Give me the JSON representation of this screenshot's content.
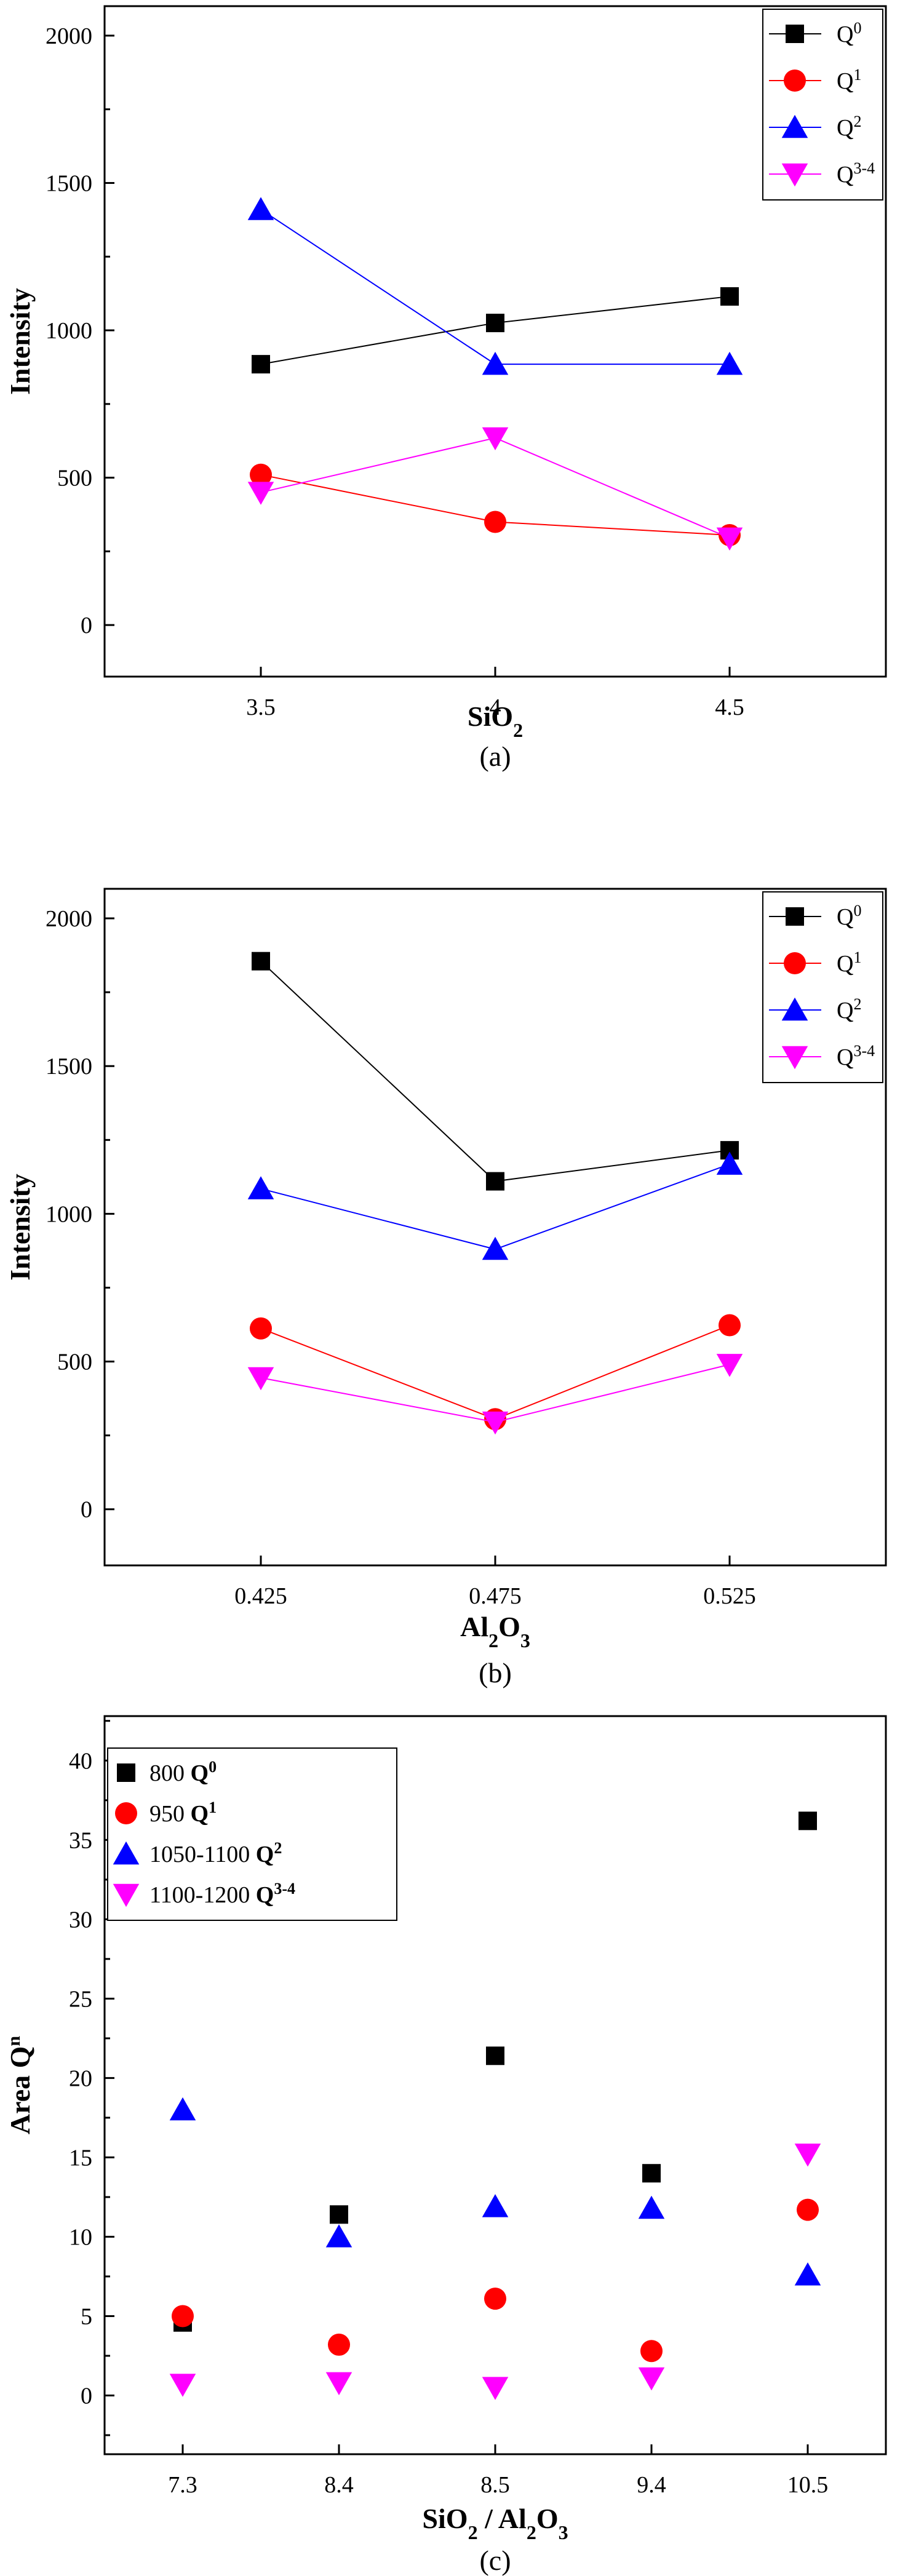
{
  "chart_data": [
    {
      "type": "line",
      "panel_label": "(a)",
      "x": [
        "3.5",
        "4",
        "4.5"
      ],
      "series": [
        {
          "name": "Q0",
          "label_base": "Q",
          "label_sup": "0",
          "color": "#000000",
          "marker": "square",
          "values": [
            885,
            1025,
            1115
          ]
        },
        {
          "name": "Q1",
          "label_base": "Q",
          "label_sup": "1",
          "color": "#ff0000",
          "marker": "circle",
          "values": [
            510,
            350,
            305
          ]
        },
        {
          "name": "Q2",
          "label_base": "Q",
          "label_sup": "2",
          "color": "#0000ff",
          "marker": "triangle-up",
          "values": [
            1410,
            885,
            885
          ]
        },
        {
          "name": "Q3-4",
          "label_base": "Q",
          "label_sup": "3-4",
          "color": "#ff00ff",
          "marker": "triangle-down",
          "values": [
            450,
            635,
            295
          ]
        }
      ],
      "ylabel": "Intensity",
      "xlabel_parts": [
        {
          "t": "SiO",
          "sub": false
        },
        {
          "t": "2",
          "sub": true
        }
      ],
      "ylim": [
        -175,
        2100
      ],
      "yticks": [
        0,
        500,
        1000,
        1500,
        2000
      ],
      "legend": "top-right",
      "grid": false
    },
    {
      "type": "line",
      "panel_label": "(b)",
      "x": [
        "0.425",
        "0.475",
        "0.525"
      ],
      "series": [
        {
          "name": "Q0",
          "label_base": "Q",
          "label_sup": "0",
          "color": "#000000",
          "marker": "square",
          "values": [
            1855,
            1110,
            1215
          ]
        },
        {
          "name": "Q1",
          "label_base": "Q",
          "label_sup": "1",
          "color": "#ff0000",
          "marker": "circle",
          "values": [
            612,
            305,
            623
          ]
        },
        {
          "name": "Q2",
          "label_base": "Q",
          "label_sup": "2",
          "color": "#0000ff",
          "marker": "triangle-up",
          "values": [
            1085,
            880,
            1168
          ]
        },
        {
          "name": "Q3-4",
          "label_base": "Q",
          "label_sup": "3-4",
          "color": "#ff00ff",
          "marker": "triangle-down",
          "values": [
            445,
            295,
            490
          ]
        }
      ],
      "ylabel": "Intensity",
      "xlabel_parts": [
        {
          "t": "Al",
          "sub": false
        },
        {
          "t": "2",
          "sub": true
        },
        {
          "t": "O",
          "sub": false
        },
        {
          "t": "3",
          "sub": true
        }
      ],
      "ylim": [
        -190,
        2100
      ],
      "yticks": [
        0,
        500,
        1000,
        1500,
        2000
      ],
      "legend": "top-right",
      "grid": false
    },
    {
      "type": "scatter",
      "panel_label": "(c)",
      "x": [
        "7.3",
        "8.4",
        "8.5",
        "9.4",
        "10.5"
      ],
      "series": [
        {
          "name": "800 Q0",
          "label_prefix": "800 ",
          "label_base": "Q",
          "label_sup": "0",
          "color": "#000000",
          "marker": "square",
          "values": [
            4.6,
            11.4,
            21.4,
            14.0,
            36.2
          ]
        },
        {
          "name": "950 Q1",
          "label_prefix": "950 ",
          "label_base": "Q",
          "label_sup": "1",
          "color": "#ff0000",
          "marker": "circle",
          "values": [
            5.0,
            3.2,
            6.1,
            2.8,
            11.7
          ]
        },
        {
          "name": "1050-1100 Q2",
          "label_prefix": "1050-1100 ",
          "label_base": "Q",
          "label_sup": "2",
          "color": "#0000ff",
          "marker": "triangle-up",
          "values": [
            18.0,
            10.0,
            11.9,
            11.8,
            7.6
          ]
        },
        {
          "name": "1100-1200 Q3-4",
          "label_prefix": "1100-1200 ",
          "label_base": "Q",
          "label_sup": "3-4",
          "color": "#ff00ff",
          "marker": "triangle-down",
          "values": [
            0.7,
            0.8,
            0.5,
            1.1,
            15.2
          ]
        }
      ],
      "ylabel_base": "Area Q",
      "ylabel_sup": "n",
      "xlabel_parts": [
        {
          "t": "SiO",
          "sub": false
        },
        {
          "t": "2",
          "sub": true
        },
        {
          "t": " / Al",
          "sub": false
        },
        {
          "t": "2",
          "sub": true
        },
        {
          "t": "O",
          "sub": false
        },
        {
          "t": "3",
          "sub": true
        }
      ],
      "ylim": [
        -3.7,
        42.8
      ],
      "yticks": [
        0,
        5,
        10,
        15,
        20,
        25,
        30,
        35,
        40
      ],
      "legend": "top-left",
      "grid": false
    }
  ]
}
